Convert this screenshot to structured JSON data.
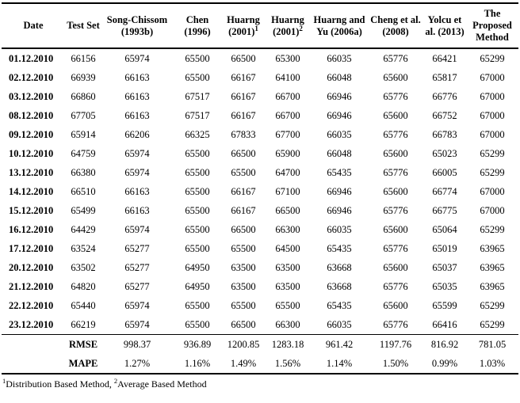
{
  "page": {
    "background_color": "#ffffff",
    "text_color": "#000000"
  },
  "table": {
    "columns": [
      {
        "label": "Date"
      },
      {
        "label": "Test Set"
      },
      {
        "label": "Song-Chissom (1993b)"
      },
      {
        "label": "Chen (1996)"
      },
      {
        "label": "Huarng (2001)",
        "sup": "1"
      },
      {
        "label": "Huarng (2001)",
        "sup": "2"
      },
      {
        "label": "Huarng and Yu (2006a)"
      },
      {
        "label": "Cheng et al. (2008)"
      },
      {
        "label": "Yolcu et al. (2013)"
      },
      {
        "label": "The Proposed Method"
      }
    ],
    "rows": [
      {
        "date": "01.12.2010",
        "values": [
          "66156",
          "65974",
          "65500",
          "66500",
          "65300",
          "66035",
          "65776",
          "66421",
          "65299"
        ]
      },
      {
        "date": "02.12.2010",
        "values": [
          "66939",
          "66163",
          "65500",
          "66167",
          "64100",
          "66048",
          "65600",
          "65817",
          "67000"
        ]
      },
      {
        "date": "03.12.2010",
        "values": [
          "66860",
          "66163",
          "67517",
          "66167",
          "66700",
          "66946",
          "65776",
          "66776",
          "67000"
        ]
      },
      {
        "date": "08.12.2010",
        "values": [
          "67705",
          "66163",
          "67517",
          "66167",
          "66700",
          "66946",
          "65600",
          "66752",
          "67000"
        ]
      },
      {
        "date": "09.12.2010",
        "values": [
          "65914",
          "66206",
          "66325",
          "67833",
          "67700",
          "66035",
          "65776",
          "66783",
          "67000"
        ]
      },
      {
        "date": "10.12.2010",
        "values": [
          "64759",
          "65974",
          "65500",
          "66500",
          "65900",
          "66048",
          "65600",
          "65023",
          "65299"
        ]
      },
      {
        "date": "13.12.2010",
        "values": [
          "66380",
          "65974",
          "65500",
          "65500",
          "64700",
          "65435",
          "65776",
          "66005",
          "65299"
        ]
      },
      {
        "date": "14.12.2010",
        "values": [
          "66510",
          "66163",
          "65500",
          "66167",
          "67100",
          "66946",
          "65600",
          "66774",
          "67000"
        ]
      },
      {
        "date": "15.12.2010",
        "values": [
          "65499",
          "66163",
          "65500",
          "66167",
          "66500",
          "66946",
          "65776",
          "66775",
          "67000"
        ]
      },
      {
        "date": "16.12.2010",
        "values": [
          "64429",
          "65974",
          "65500",
          "66500",
          "66300",
          "66035",
          "65600",
          "65064",
          "65299"
        ]
      },
      {
        "date": "17.12.2010",
        "values": [
          "63524",
          "65277",
          "65500",
          "65500",
          "64500",
          "65435",
          "65776",
          "65019",
          "63965"
        ]
      },
      {
        "date": "20.12.2010",
        "values": [
          "63502",
          "65277",
          "64950",
          "63500",
          "63500",
          "63668",
          "65600",
          "65037",
          "63965"
        ]
      },
      {
        "date": "21.12.2010",
        "values": [
          "64820",
          "65277",
          "64950",
          "63500",
          "63500",
          "63668",
          "65776",
          "65035",
          "63965"
        ]
      },
      {
        "date": "22.12.2010",
        "values": [
          "65440",
          "65974",
          "65500",
          "65500",
          "65500",
          "65435",
          "65600",
          "65599",
          "65299"
        ]
      },
      {
        "date": "23.12.2010",
        "values": [
          "66219",
          "65974",
          "65500",
          "66500",
          "66300",
          "66035",
          "65776",
          "66416",
          "65299"
        ]
      }
    ],
    "summary": [
      {
        "label": "RMSE",
        "values": [
          "998.37",
          "936.89",
          "1200.85",
          "1283.18",
          "961.42",
          "1197.76",
          "816.92",
          "781.05"
        ]
      },
      {
        "label": "MAPE",
        "values": [
          "1.27%",
          "1.16%",
          "1.49%",
          "1.56%",
          "1.14%",
          "1.50%",
          "0.99%",
          "1.03%"
        ]
      }
    ]
  },
  "footnote": {
    "sup1": "1",
    "text1": "Distribution Based Method, ",
    "sup2": "2",
    "text2": "Average Based Method"
  }
}
